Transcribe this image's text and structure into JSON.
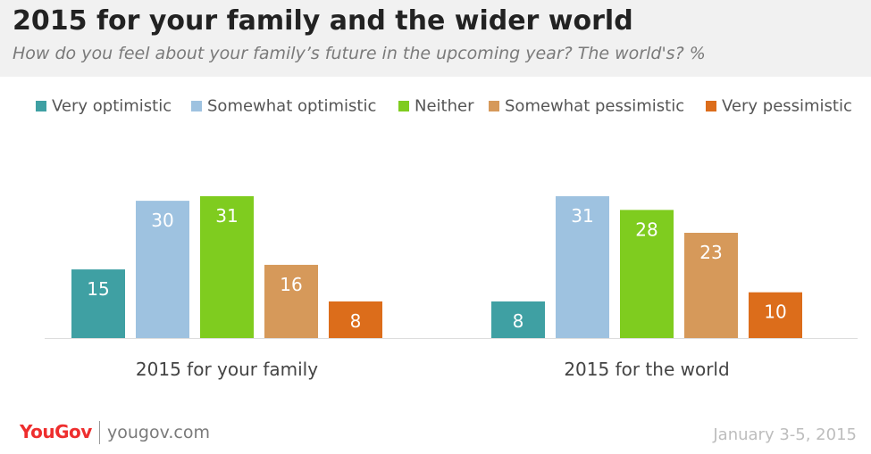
{
  "header": {
    "title": "2015 for your family and the wider world",
    "subtitle": "How do you feel about your family’s future in the upcoming year? The world's? %"
  },
  "chart_data": {
    "type": "bar",
    "categories": [
      "2015 for your family",
      "2015 for the world"
    ],
    "series": [
      {
        "name": "Very optimistic",
        "color": "#3fa0a3",
        "values": [
          15,
          8
        ]
      },
      {
        "name": "Somewhat optimistic",
        "color": "#9ec2e0",
        "values": [
          30,
          31
        ]
      },
      {
        "name": "Neither",
        "color": "#7fcc1f",
        "values": [
          31,
          28
        ]
      },
      {
        "name": "Somewhat pessimistic",
        "color": "#d6995a",
        "values": [
          16,
          23
        ]
      },
      {
        "name": "Very pessimistic",
        "color": "#dc6d1b",
        "values": [
          8,
          10
        ]
      }
    ],
    "ylim": [
      0,
      35
    ],
    "grid": false,
    "legend": "top",
    "data_labels": true
  },
  "footer": {
    "brand": "YouGov",
    "site": "yougov.com",
    "date": "January 3-5, 2015"
  }
}
